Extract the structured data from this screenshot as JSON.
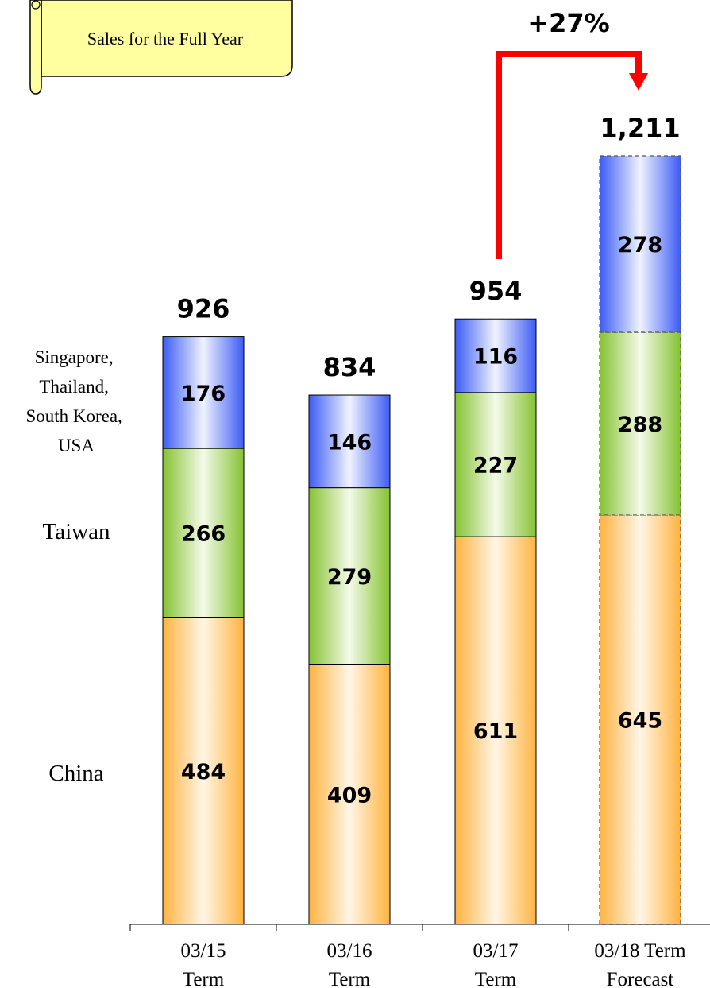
{
  "chart_data": {
    "type": "bar",
    "stacked": true,
    "title": "Sales for the Full Year",
    "categories": [
      "03/15 Term",
      "03/16 Term",
      "03/17 Term",
      "03/18 Term Forecast"
    ],
    "category_lines": [
      [
        "03/15",
        "Term"
      ],
      [
        "03/16",
        "Term"
      ],
      [
        "03/17",
        "Term"
      ],
      [
        "03/18 Term",
        "Forecast"
      ]
    ],
    "forecast": [
      false,
      false,
      false,
      true
    ],
    "series": [
      {
        "name": "China",
        "values": [
          484,
          409,
          611,
          645
        ],
        "color": "#FFB84D"
      },
      {
        "name": "Taiwan",
        "values": [
          266,
          279,
          227,
          288
        ],
        "color": "#8CC63F"
      },
      {
        "name": "Singapore, Thailand, South Korea, USA",
        "values": [
          176,
          146,
          116,
          278
        ],
        "color": "#4A6CF7"
      }
    ],
    "totals": [
      "926",
      "834",
      "954",
      "1,211"
    ],
    "legend_lines": {
      "top": [
        "Singapore,",
        "Thailand,",
        "South Korea,",
        "USA"
      ],
      "middle": [
        "Taiwan"
      ],
      "bottom": [
        "China"
      ]
    },
    "annotation": {
      "text": "+27%",
      "from": "03/17 Term",
      "to": "03/18 Term Forecast",
      "color": "#FF0000"
    },
    "ylim": [
      0,
      1211
    ],
    "grid": false,
    "legend": "left"
  }
}
